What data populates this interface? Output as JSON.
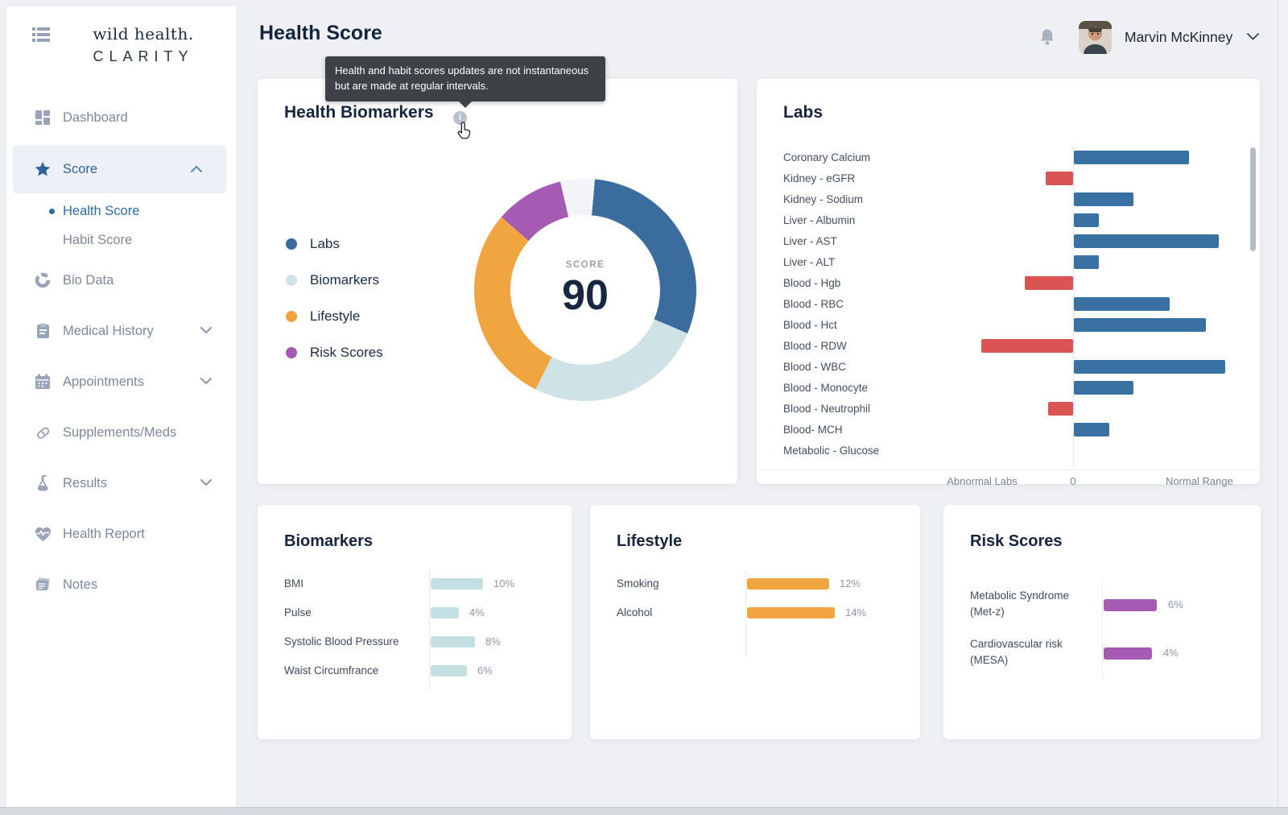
{
  "app": {
    "logo_line1": "wild health.",
    "logo_line2": "CLARITY"
  },
  "header": {
    "title": "Health Score",
    "user_name": "Marvin McKinney"
  },
  "tooltip": {
    "text": "Health and habit scores updates are not instantaneous but are made at regular intervals."
  },
  "sidebar": {
    "items": [
      {
        "label": "Dashboard",
        "icon": "dashboard-grid-icon",
        "active": false
      },
      {
        "label": "Score",
        "icon": "star-icon",
        "active": true,
        "expanded": true,
        "children": [
          {
            "label": "Health Score",
            "active": true
          },
          {
            "label": "Habit Score",
            "active": false
          }
        ]
      },
      {
        "label": "Bio Data",
        "icon": "donut-icon"
      },
      {
        "label": "Medical History",
        "icon": "clipboard-icon",
        "chevron": "down"
      },
      {
        "label": "Appointments",
        "icon": "calendar-icon",
        "chevron": "down"
      },
      {
        "label": "Supplements/Meds",
        "icon": "pill-icon"
      },
      {
        "label": "Results",
        "icon": "flask-icon",
        "chevron": "down"
      },
      {
        "label": "Health Report",
        "icon": "heart-pulse-icon"
      },
      {
        "label": "Notes",
        "icon": "notes-icon"
      }
    ]
  },
  "colors": {
    "labs_blue": "#3a71a3",
    "abnormal_red": "#d95452",
    "biomarker_light_blue": "#c3dfe4",
    "lifestyle_orange": "#f0a541",
    "risk_purple": "#a55ab4",
    "donut_gap": "#f3f4f7",
    "active_nav_blue": "#2e6494",
    "sub_link_blue": "#2d6ca2"
  },
  "chart_data": [
    {
      "type": "pie",
      "title": "Health Biomarkers",
      "subtype": "donut",
      "center_label": "SCORE",
      "center_value": "90",
      "start_angle_deg": 5,
      "gap_pct": 5,
      "gap_color": "#f3f4f7",
      "segments": [
        {
          "label": "Labs",
          "pct": 30,
          "color": "#3a6d9e"
        },
        {
          "label": "Biomarkers",
          "pct": 26,
          "color": "#cfe3e7"
        },
        {
          "label": "Lifestyle",
          "pct": 29,
          "color": "#f0a541"
        },
        {
          "label": "Risk Scores",
          "pct": 10,
          "color": "#a55ab4"
        }
      ]
    },
    {
      "type": "bar",
      "title": "Labs",
      "orientation": "horizontal-diverging",
      "units": "relative bar length px; negative = abnormal (left of zero)",
      "normal_color": "#3a71a3",
      "abnormal_color": "#d95452",
      "axis_labels": [
        "Abnormal Labs",
        "0",
        "Normal Range"
      ],
      "rows": [
        {
          "label": "Coronary Calcium",
          "value": 143
        },
        {
          "label": "Kidney - eGFR",
          "value": -34
        },
        {
          "label": "Kidney - Sodium",
          "value": 74
        },
        {
          "label": "Liver - Albumin",
          "value": 31
        },
        {
          "label": "Liver - AST",
          "value": 180
        },
        {
          "label": "Liver - ALT",
          "value": 31
        },
        {
          "label": "Blood - Hgb",
          "value": -60
        },
        {
          "label": "Blood - RBC",
          "value": 119
        },
        {
          "label": "Blood - Hct",
          "value": 164
        },
        {
          "label": "Blood - RDW",
          "value": -114
        },
        {
          "label": "Blood - WBC",
          "value": 188
        },
        {
          "label": "Blood - Monocyte",
          "value": 74
        },
        {
          "label": "Blood - Neutrophil",
          "value": -31
        },
        {
          "label": "Blood- MCH",
          "value": 44
        },
        {
          "label": "Metabolic - Glucose",
          "value": 0
        }
      ]
    },
    {
      "type": "bar",
      "title": "Biomarkers",
      "orientation": "horizontal",
      "unit": "%",
      "color": "#c3dfe4",
      "rows": [
        {
          "label": "BMI",
          "value": 10,
          "value_label": "10%"
        },
        {
          "label": "Pulse",
          "value": 4,
          "value_label": "4%"
        },
        {
          "label": "Systolic Blood Pressure",
          "value": 8,
          "value_label": "8%"
        },
        {
          "label": "Waist Circumfrance",
          "value": 6,
          "value_label": "6%"
        }
      ]
    },
    {
      "type": "bar",
      "title": "Lifestyle",
      "orientation": "horizontal",
      "unit": "%",
      "color": "#f0a541",
      "rows": [
        {
          "label": "Smoking",
          "value": 12,
          "value_label": "12%"
        },
        {
          "label": "Alcohol",
          "value": 14,
          "value_label": "14%"
        }
      ]
    },
    {
      "type": "bar",
      "title": "Risk Scores",
      "orientation": "horizontal",
      "unit": "%",
      "color": "#a55ab4",
      "rows": [
        {
          "label": "Metabolic Syndrome",
          "sublabel": "(Met-z)",
          "value": 6,
          "value_label": "6%"
        },
        {
          "label": "Cardiovascular risk",
          "sublabel": "(MESA)",
          "value": 4,
          "value_label": "4%"
        }
      ]
    }
  ]
}
